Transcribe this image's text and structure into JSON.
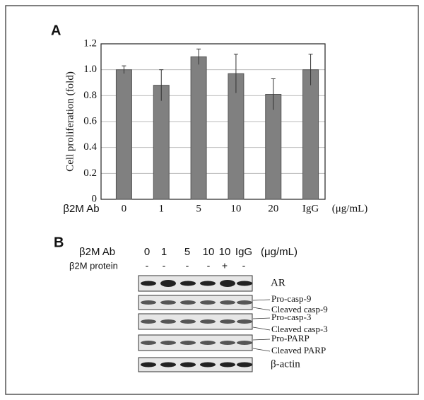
{
  "chart_data": {
    "type": "bar",
    "panel_label": "A",
    "ylabel": "Cell proliferation (fold)",
    "x_axis_label": "β2M Ab",
    "x_axis_unit": "(μg/mL)",
    "categories": [
      "0",
      "1",
      "5",
      "10",
      "20",
      "IgG"
    ],
    "values": [
      1.0,
      0.88,
      1.1,
      0.97,
      0.81,
      1.0
    ],
    "errors": [
      0.03,
      0.12,
      0.06,
      0.15,
      0.12,
      0.12
    ],
    "color": "#808080",
    "ylim": [
      0,
      1.2
    ],
    "yticks": [
      0,
      0.2,
      0.4,
      0.6,
      0.8,
      {
        "value": 1,
        "label": "1.0"
      },
      1.2
    ],
    "grid": true
  },
  "panel_b": {
    "label": "B",
    "treatment_rows": [
      {
        "name": "β2M Ab",
        "cells": [
          "0",
          "1",
          "5",
          "10",
          "10",
          "IgG"
        ],
        "unit": "(μg/mL)"
      },
      {
        "name": "β2M protein",
        "cells": [
          "-",
          "-",
          "-",
          "-",
          "+",
          "-"
        ]
      }
    ],
    "blots": [
      {
        "labels": [
          "AR"
        ]
      },
      {
        "labels": [
          "Pro-casp-9",
          "Cleaved casp-9"
        ]
      },
      {
        "labels": [
          "Pro-casp-3",
          "Cleaved casp-3"
        ]
      },
      {
        "labels": [
          "Pro-PARP",
          "Cleaved PARP"
        ]
      },
      {
        "labels": [
          "β-actin"
        ]
      }
    ]
  }
}
